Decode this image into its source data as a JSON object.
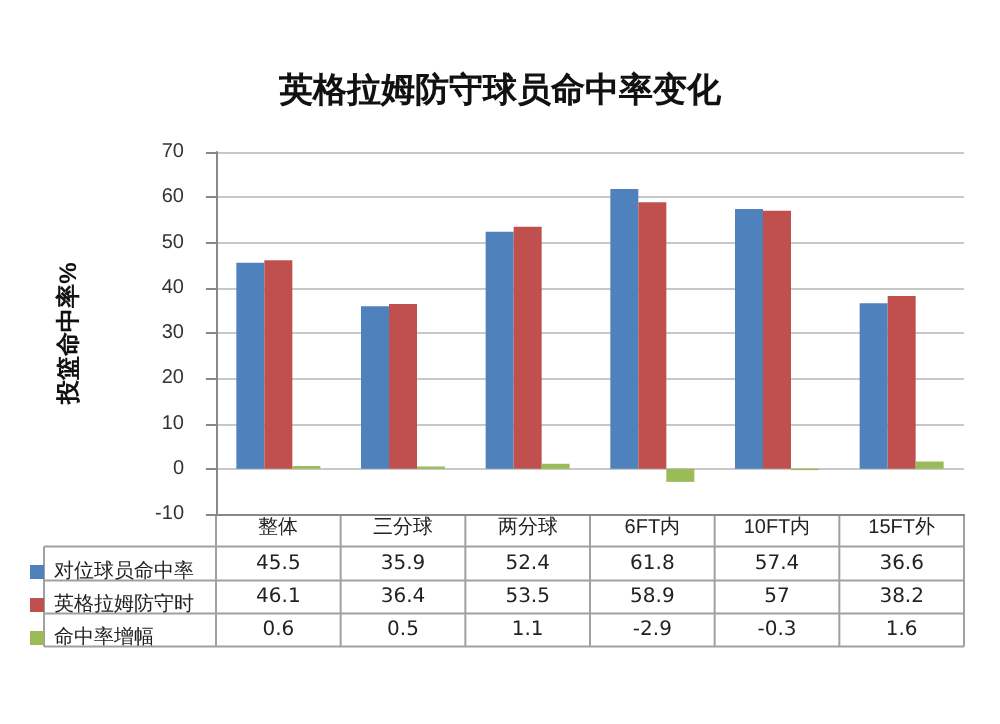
{
  "chart_data": {
    "type": "bar",
    "title": "英格拉姆防守球员命中率变化",
    "ylabel": "投篮命中率%",
    "categories": [
      "整体",
      "三分球",
      "两分球",
      "6FT内",
      "10FT内",
      "15FT外"
    ],
    "series": [
      {
        "name": "对位球员命中率",
        "color": "#4f81bd",
        "values": [
          45.5,
          35.9,
          52.4,
          61.8,
          57.4,
          36.6
        ]
      },
      {
        "name": "英格拉姆防守时",
        "color": "#c0504d",
        "values": [
          46.1,
          36.4,
          53.5,
          58.9,
          57,
          38.2
        ]
      },
      {
        "name": "命中率增幅",
        "color": "#9bbb59",
        "values": [
          0.6,
          0.5,
          1.1,
          -2.9,
          -0.3,
          1.6
        ]
      }
    ],
    "ylim": [
      -10,
      70
    ],
    "yticks": [
      -10,
      0,
      10,
      20,
      30,
      40,
      50,
      60,
      70
    ],
    "grid": "y",
    "legend": "bottom left",
    "data_labels": true
  }
}
